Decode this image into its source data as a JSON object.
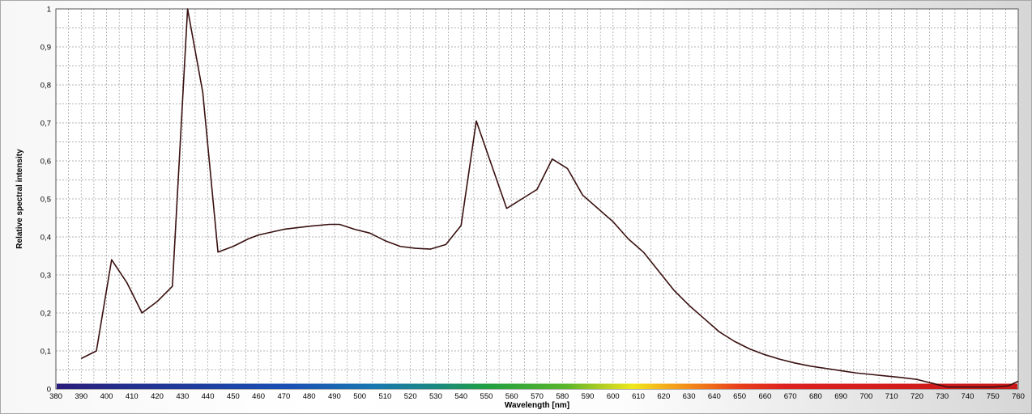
{
  "chart_data": {
    "type": "line",
    "title": "",
    "xlabel": "Wavelength [nm]",
    "ylabel": "Relative spectral intensity",
    "xlim": [
      380,
      760
    ],
    "ylim": [
      0,
      1
    ],
    "x_ticks": [
      380,
      390,
      400,
      410,
      420,
      430,
      440,
      450,
      460,
      470,
      480,
      490,
      500,
      510,
      520,
      530,
      540,
      550,
      560,
      570,
      580,
      590,
      600,
      610,
      620,
      630,
      640,
      650,
      660,
      670,
      680,
      690,
      700,
      710,
      720,
      730,
      740,
      750,
      760
    ],
    "x_minor_step": 5,
    "y_ticks": [
      {
        "value": 0,
        "label": "0"
      },
      {
        "value": 0.1,
        "label": "0,1"
      },
      {
        "value": 0.2,
        "label": "0,2"
      },
      {
        "value": 0.3,
        "label": "0,3"
      },
      {
        "value": 0.4,
        "label": "0,4"
      },
      {
        "value": 0.5,
        "label": "0,5"
      },
      {
        "value": 0.6,
        "label": "0,6"
      },
      {
        "value": 0.7,
        "label": "0,7"
      },
      {
        "value": 0.8,
        "label": "0,8"
      },
      {
        "value": 0.9,
        "label": "0,9"
      },
      {
        "value": 1,
        "label": "1"
      }
    ],
    "y_minor_step": 0.05,
    "grid": true,
    "legend": "none",
    "line_color": "#3a1010",
    "spectrum_bar": true,
    "series": [
      {
        "x": [
          390,
          396,
          402,
          408,
          414,
          420,
          426,
          432,
          438,
          444,
          450,
          456,
          460,
          470,
          480,
          488,
          492,
          498,
          504,
          510,
          516,
          522,
          528,
          534,
          540,
          546,
          552,
          558,
          564,
          570,
          576,
          582,
          588,
          594,
          600,
          606,
          612,
          618,
          624,
          630,
          636,
          642,
          648,
          654,
          660,
          666,
          672,
          678,
          684,
          690,
          696,
          702,
          708,
          714,
          720,
          726,
          732,
          738,
          744,
          750,
          756,
          760
        ],
        "y": [
          0.08,
          0.1,
          0.34,
          0.28,
          0.2,
          0.23,
          0.27,
          1.0,
          0.78,
          0.36,
          0.375,
          0.395,
          0.405,
          0.42,
          0.428,
          0.433,
          0.433,
          0.42,
          0.41,
          0.39,
          0.375,
          0.37,
          0.368,
          0.38,
          0.43,
          0.705,
          0.59,
          0.475,
          0.5,
          0.525,
          0.605,
          0.58,
          0.51,
          0.475,
          0.44,
          0.395,
          0.36,
          0.31,
          0.26,
          0.22,
          0.185,
          0.15,
          0.125,
          0.105,
          0.09,
          0.078,
          0.068,
          0.06,
          0.054,
          0.048,
          0.042,
          0.038,
          0.034,
          0.03,
          0.025,
          0.015,
          0.005,
          0.005,
          0.005,
          0.005,
          0.008,
          0.02
        ]
      }
    ]
  }
}
